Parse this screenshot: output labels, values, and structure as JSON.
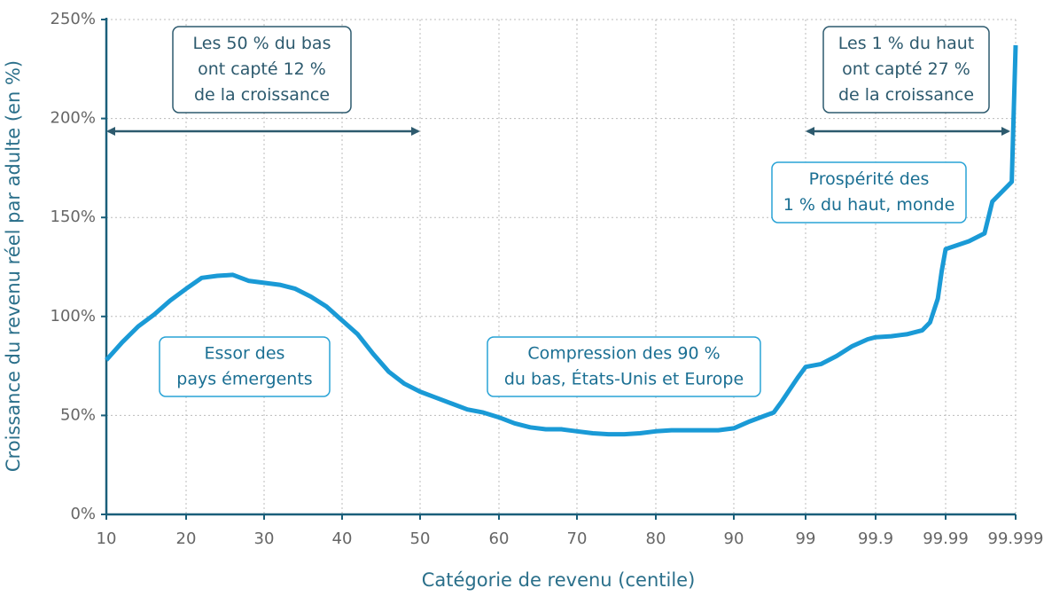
{
  "chart_data": {
    "type": "line",
    "xlabel": "Catégorie de revenu (centile)",
    "ylabel": "Croissance du revenu réel par adulte (en %)",
    "color": "#1a9ad6",
    "grid": true,
    "xticks": [
      10,
      20,
      30,
      40,
      50,
      60,
      70,
      80,
      90,
      99,
      99.9,
      99.99,
      99.999
    ],
    "ylim": [
      0,
      250
    ],
    "yticks": [
      {
        "value": 0,
        "label": "0%"
      },
      {
        "value": 50,
        "label": "50%"
      },
      {
        "value": 100,
        "label": "100%"
      },
      {
        "value": 150,
        "label": "150%"
      },
      {
        "value": 200,
        "label": "200%"
      },
      {
        "value": 250,
        "label": "250%"
      }
    ],
    "x": [
      10,
      12,
      14,
      16,
      18,
      20,
      22,
      24,
      26,
      28,
      30,
      32,
      34,
      36,
      38,
      40,
      42,
      44,
      46,
      48,
      50,
      52,
      54,
      56,
      58,
      60,
      62,
      64,
      66,
      68,
      70,
      72,
      74,
      76,
      78,
      80,
      82,
      84,
      86,
      88,
      90,
      92,
      94,
      95,
      96,
      97,
      98,
      99,
      99.2,
      99.4,
      99.6,
      99.8,
      99.9,
      99.92,
      99.94,
      99.96,
      99.97,
      99.98,
      99.985,
      99.99,
      99.993,
      99.995,
      99.996,
      99.998,
      99.9985,
      99.999
    ],
    "values": [
      78,
      87,
      95,
      101,
      108,
      114,
      119.5,
      120.5,
      121,
      118,
      117,
      116,
      114,
      110,
      105,
      98,
      91,
      81,
      72,
      66,
      62,
      59,
      56,
      53,
      51.5,
      49,
      46,
      44,
      43,
      43,
      42,
      41,
      40.5,
      40.5,
      41,
      42,
      42.5,
      42.5,
      42.5,
      42.5,
      43.5,
      47,
      50,
      51.5,
      57,
      63,
      69,
      74.5,
      76,
      80,
      85,
      88.5,
      89.5,
      90,
      91,
      93,
      97,
      109,
      123,
      134,
      138,
      142,
      158,
      166,
      168,
      237
    ],
    "annotations": [
      {
        "lines": [
          "Les 50 % du bas",
          "ont capté 12 %",
          "de la croissance"
        ]
      },
      {
        "lines": [
          "Les 1 % du haut",
          "ont capté 27 %",
          "de la croissance"
        ]
      },
      {
        "lines": [
          "Prospérité des",
          "1 % du haut, monde"
        ]
      },
      {
        "lines": [
          "Essor des",
          "pays émergents"
        ]
      },
      {
        "lines": [
          "Compression des 90 %",
          "du bas, États-Unis et Europe"
        ]
      }
    ]
  }
}
